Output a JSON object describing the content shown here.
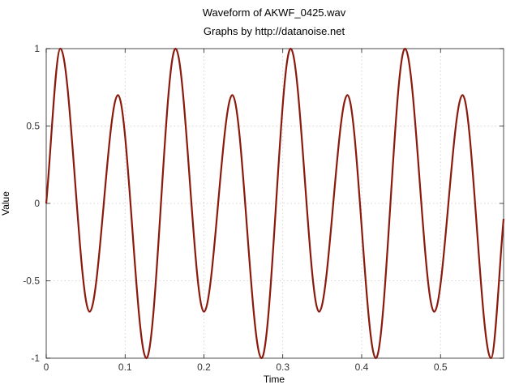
{
  "chart_data": {
    "type": "line",
    "title": "Waveform of AKWF_0425.wav",
    "subtitle": "Graphs by http://datanoise.net",
    "xlabel": "Time",
    "ylabel": "Value",
    "xlim": [
      0,
      0.58
    ],
    "ylim": [
      -1,
      1
    ],
    "xticks": [
      0,
      0.1,
      0.2,
      0.3,
      0.4,
      0.5
    ],
    "xtick_labels": [
      "0",
      "0.1",
      "0.2",
      "0.3",
      "0.4",
      "0.5"
    ],
    "yticks": [
      -1,
      -0.5,
      0,
      0.5,
      1
    ],
    "ytick_labels": [
      "-1",
      "-0.5",
      "0",
      "0.5",
      "1"
    ],
    "grid": true,
    "series": [
      {
        "color": "#8b1a0e",
        "x": [
          0,
          0.018,
          0.055,
          0.091,
          0.127,
          0.164,
          0.2,
          0.236,
          0.273,
          0.31,
          0.346,
          0.382,
          0.418,
          0.455,
          0.492,
          0.528,
          0.564,
          0.58
        ],
        "y": [
          0,
          1,
          -0.7,
          0.7,
          -1,
          1,
          -0.7,
          0.7,
          -1,
          1,
          -0.7,
          0.7,
          -1,
          1,
          -0.7,
          0.7,
          -1,
          -0.1
        ]
      }
    ]
  }
}
